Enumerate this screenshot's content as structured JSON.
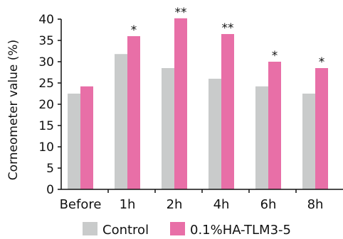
{
  "chart_data": {
    "type": "bar",
    "categories": [
      "Before",
      "1h",
      "2h",
      "4h",
      "6h",
      "8h"
    ],
    "series": [
      {
        "name": "Control",
        "color": "#c9cbcb",
        "values": [
          22.5,
          31.8,
          28.5,
          26.0,
          24.2,
          22.5
        ]
      },
      {
        "name": "0.1%HA-TLM3-5",
        "color": "#e86fa7",
        "values": [
          24.2,
          36.0,
          40.2,
          36.5,
          30.0,
          28.5
        ]
      }
    ],
    "significance": [
      "",
      "*",
      "**",
      "**",
      "*",
      "*"
    ],
    "ylabel": "Corneometer value (%)",
    "xlabel": "",
    "ylim": [
      0,
      40
    ],
    "yticks": [
      0,
      5,
      10,
      15,
      20,
      25,
      30,
      35,
      40
    ],
    "grid": false,
    "legend": "bottom"
  }
}
